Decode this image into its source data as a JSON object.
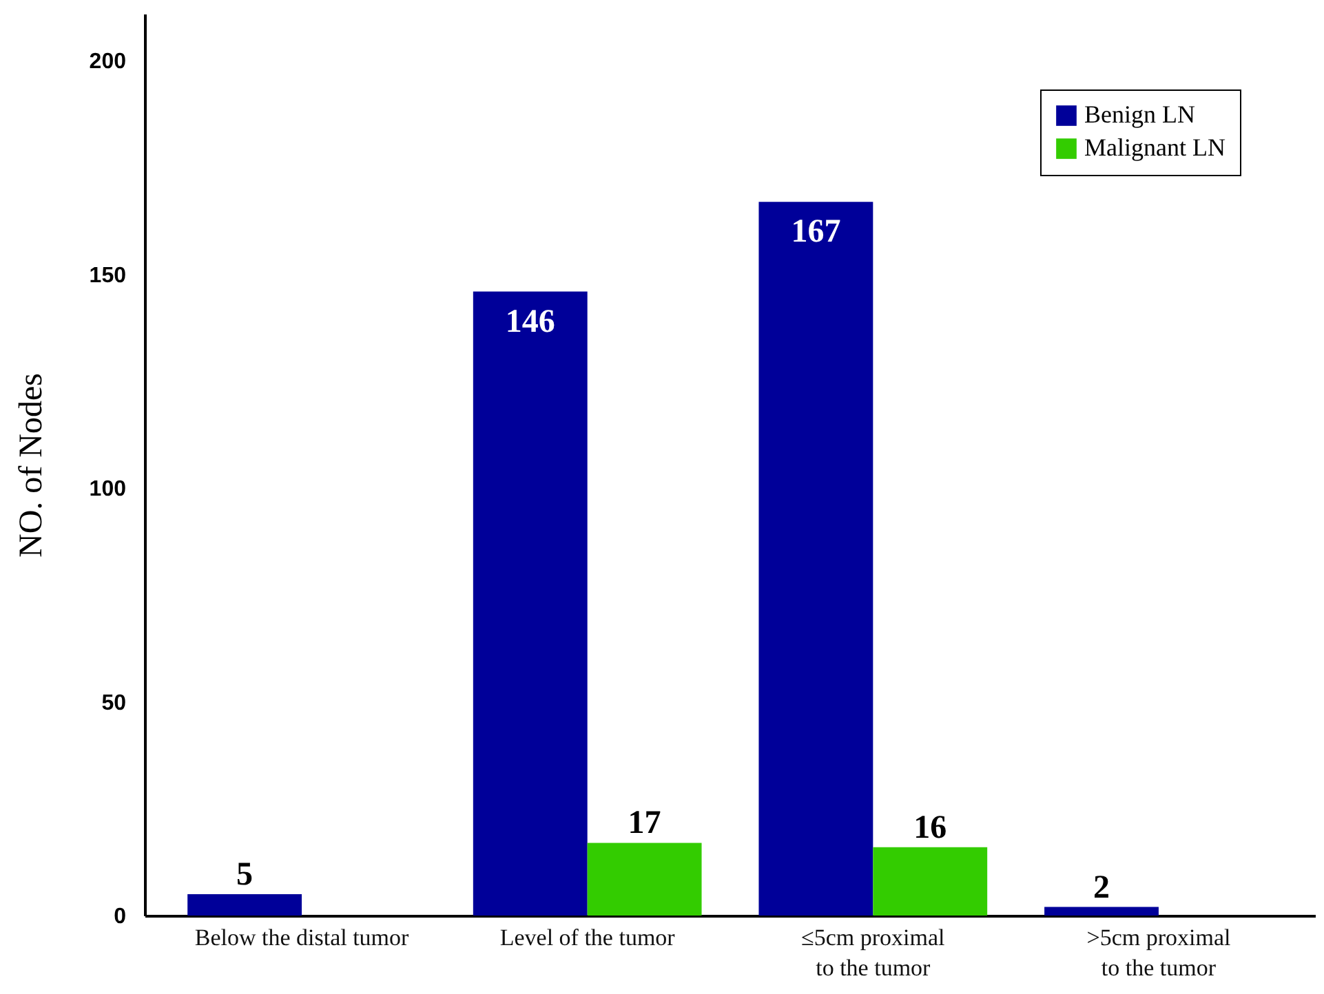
{
  "chart_data": {
    "type": "bar",
    "ylabel": "NO. of Nodes",
    "categories": [
      "Below the distal tumor",
      "Level of the tumor",
      "≤5cm proximal\nto the tumor",
      ">5cm proximal\nto the tumor"
    ],
    "series": [
      {
        "name": "Benign LN",
        "color": "#000099",
        "values": [
          5,
          146,
          167,
          2
        ]
      },
      {
        "name": "Malignant LN",
        "color": "#33cc00",
        "values": [
          null,
          17,
          16,
          null
        ]
      }
    ],
    "ylim": [
      0,
      211
    ],
    "yticks": [
      0,
      50,
      100,
      150,
      200
    ],
    "grid": false,
    "legend": "top right",
    "data_labels": true
  }
}
